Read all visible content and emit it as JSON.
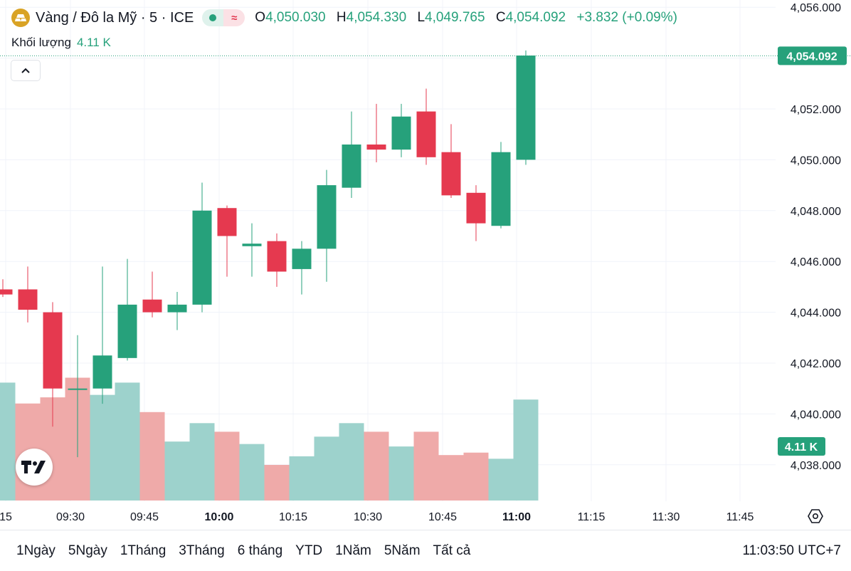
{
  "header": {
    "symbol": "Vàng / Đô la Mỹ · 5 · ICE",
    "open_label": "O",
    "open": "4,050.030",
    "high_label": "H",
    "high": "4,054.330",
    "low_label": "L",
    "low": "4,049.765",
    "close_label": "C",
    "close": "4,054.092",
    "change": "+3.832 (+0.09%)",
    "volume_label": "Khối lượng",
    "volume": "4.11 K"
  },
  "price_badge": "4,054.092",
  "volume_badge": "4.11 K",
  "timeframes": [
    "1Ngày",
    "5Ngày",
    "1Tháng",
    "3Tháng",
    "6 tháng",
    "YTD",
    "1Năm",
    "5Năm",
    "Tất cả"
  ],
  "clock": "11:03:50 UTC+7",
  "colors": {
    "up": "#26a17b",
    "down": "#e5394f",
    "vol_up": "#9dd2cc",
    "vol_down": "#efaaa9"
  },
  "icons": [
    "gold-bars-icon",
    "live-dot-icon",
    "delay-icon",
    "chevron-up-icon",
    "tradingview-logo-icon",
    "settings-icon"
  ],
  "chart_data": {
    "type": "candlestick",
    "price_axis": {
      "ticks": [
        "4,056.000",
        "4,054.000",
        "4,052.000",
        "4,050.000",
        "4,048.000",
        "4,046.000",
        "4,044.000",
        "4,042.000",
        "4,040.000",
        "4,038.000"
      ],
      "range": [
        4037.6,
        4056.2
      ]
    },
    "time_axis": {
      "labels": [
        "15",
        "09:30",
        "09:45",
        "10:00",
        "10:15",
        "10:30",
        "10:45",
        "11:00",
        "11:15",
        "11:30",
        "11:45"
      ],
      "bold": [
        "10:00",
        "11:00"
      ]
    },
    "candles": [
      {
        "t": "09:15",
        "o": 4044.9,
        "h": 4045.3,
        "l": 4044.6,
        "c": 4044.7
      },
      {
        "t": "09:20",
        "o": 4044.9,
        "h": 4045.8,
        "l": 4043.6,
        "c": 4044.1
      },
      {
        "t": "09:25",
        "o": 4044.0,
        "h": 4044.4,
        "l": 4039.5,
        "c": 4041.0
      },
      {
        "t": "09:30",
        "o": 4041.0,
        "h": 4043.1,
        "l": 4038.3,
        "c": 4041.0
      },
      {
        "t": "09:35",
        "o": 4041.0,
        "h": 4045.8,
        "l": 4040.4,
        "c": 4042.3
      },
      {
        "t": "09:40",
        "o": 4042.2,
        "h": 4046.1,
        "l": 4042.1,
        "c": 4044.3
      },
      {
        "t": "09:45",
        "o": 4044.5,
        "h": 4045.6,
        "l": 4043.8,
        "c": 4044.0
      },
      {
        "t": "09:50",
        "o": 4044.0,
        "h": 4044.8,
        "l": 4043.3,
        "c": 4044.3
      },
      {
        "t": "09:55",
        "o": 4044.3,
        "h": 4049.1,
        "l": 4044.0,
        "c": 4048.0
      },
      {
        "t": "10:00",
        "o": 4048.1,
        "h": 4048.2,
        "l": 4045.4,
        "c": 4047.0
      },
      {
        "t": "10:05",
        "o": 4046.6,
        "h": 4047.5,
        "l": 4045.4,
        "c": 4046.7
      },
      {
        "t": "10:10",
        "o": 4046.8,
        "h": 4047.1,
        "l": 4045.0,
        "c": 4045.6
      },
      {
        "t": "10:15",
        "o": 4045.7,
        "h": 4046.8,
        "l": 4044.7,
        "c": 4046.5
      },
      {
        "t": "10:20",
        "o": 4046.5,
        "h": 4049.6,
        "l": 4045.2,
        "c": 4049.0
      },
      {
        "t": "10:25",
        "o": 4048.9,
        "h": 4051.9,
        "l": 4048.5,
        "c": 4050.6
      },
      {
        "t": "10:30",
        "o": 4050.6,
        "h": 4052.2,
        "l": 4049.9,
        "c": 4050.4
      },
      {
        "t": "10:35",
        "o": 4050.4,
        "h": 4052.2,
        "l": 4050.1,
        "c": 4051.7
      },
      {
        "t": "10:40",
        "o": 4051.9,
        "h": 4052.8,
        "l": 4049.8,
        "c": 4050.1
      },
      {
        "t": "10:45",
        "o": 4050.3,
        "h": 4051.4,
        "l": 4048.5,
        "c": 4048.6
      },
      {
        "t": "10:50",
        "o": 4048.7,
        "h": 4049.0,
        "l": 4046.8,
        "c": 4047.5
      },
      {
        "t": "10:55",
        "o": 4047.4,
        "h": 4050.7,
        "l": 4047.3,
        "c": 4050.3
      },
      {
        "t": "11:00",
        "o": 4050.0,
        "h": 4054.3,
        "l": 4049.8,
        "c": 4054.1
      }
    ],
    "volume": [
      {
        "t": "09:15",
        "v": 4.8,
        "dir": "up"
      },
      {
        "t": "09:20",
        "v": 3.95,
        "dir": "down"
      },
      {
        "t": "09:25",
        "v": 4.2,
        "dir": "down"
      },
      {
        "t": "09:30",
        "v": 5.0,
        "dir": "down"
      },
      {
        "t": "09:35",
        "v": 4.3,
        "dir": "up"
      },
      {
        "t": "09:40",
        "v": 4.8,
        "dir": "up"
      },
      {
        "t": "09:45",
        "v": 3.6,
        "dir": "down"
      },
      {
        "t": "09:50",
        "v": 2.4,
        "dir": "up"
      },
      {
        "t": "09:55",
        "v": 3.15,
        "dir": "up"
      },
      {
        "t": "10:00",
        "v": 2.8,
        "dir": "down"
      },
      {
        "t": "10:05",
        "v": 2.3,
        "dir": "up"
      },
      {
        "t": "10:10",
        "v": 1.45,
        "dir": "down"
      },
      {
        "t": "10:15",
        "v": 1.8,
        "dir": "up"
      },
      {
        "t": "10:20",
        "v": 2.6,
        "dir": "up"
      },
      {
        "t": "10:25",
        "v": 3.15,
        "dir": "up"
      },
      {
        "t": "10:30",
        "v": 2.8,
        "dir": "down"
      },
      {
        "t": "10:35",
        "v": 2.2,
        "dir": "up"
      },
      {
        "t": "10:40",
        "v": 2.8,
        "dir": "down"
      },
      {
        "t": "10:45",
        "v": 1.85,
        "dir": "down"
      },
      {
        "t": "10:50",
        "v": 1.95,
        "dir": "down"
      },
      {
        "t": "10:55",
        "v": 1.7,
        "dir": "up"
      },
      {
        "t": "11:00",
        "v": 4.11,
        "dir": "up"
      }
    ],
    "grid": true,
    "last_price": 4054.092
  }
}
